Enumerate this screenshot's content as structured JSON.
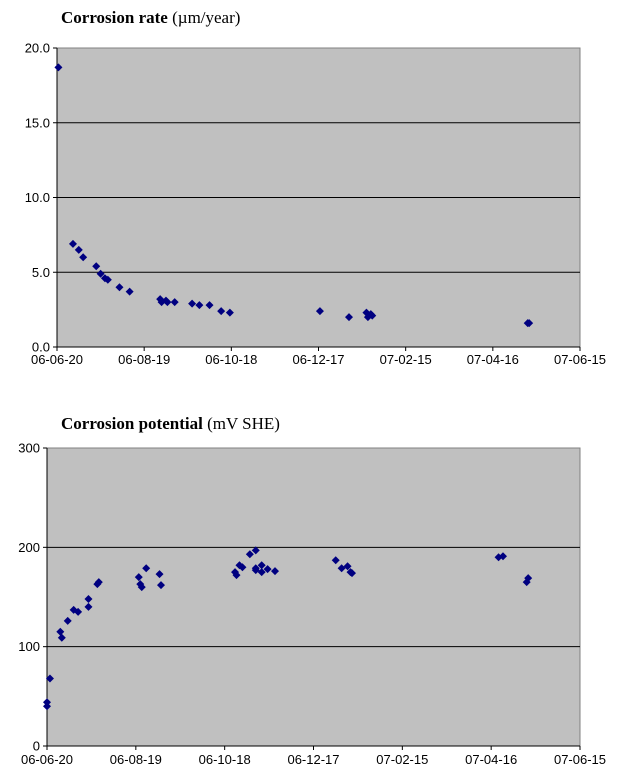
{
  "chart_data": [
    {
      "type": "scatter",
      "title": "Corrosion rate",
      "title_unit": "(µm/year)",
      "ylim": [
        0,
        20
      ],
      "yticks": [
        0,
        5,
        10,
        15,
        20
      ],
      "ytick_labels": [
        "0.0",
        "5.0",
        "10.0",
        "15.0",
        "20.0"
      ],
      "xlim": [
        "2006-06-20",
        "2007-06-15"
      ],
      "xtick_labels": [
        "06-06-20",
        "06-08-19",
        "06-10-18",
        "06-12-17",
        "07-02-15",
        "07-04-16",
        "07-06-15"
      ],
      "grid": true,
      "background_color": "#c0c0c0",
      "marker_color": "#000080",
      "points": [
        {
          "x": "2006-06-21",
          "y": 18.7
        },
        {
          "x": "2006-07-01",
          "y": 6.9
        },
        {
          "x": "2006-07-05",
          "y": 6.5
        },
        {
          "x": "2006-07-08",
          "y": 6.0
        },
        {
          "x": "2006-07-17",
          "y": 5.4
        },
        {
          "x": "2006-07-20",
          "y": 4.9
        },
        {
          "x": "2006-07-23",
          "y": 4.6
        },
        {
          "x": "2006-07-25",
          "y": 4.5
        },
        {
          "x": "2006-08-02",
          "y": 4.0
        },
        {
          "x": "2006-08-09",
          "y": 3.7
        },
        {
          "x": "2006-08-30",
          "y": 3.2
        },
        {
          "x": "2006-08-31",
          "y": 3.0
        },
        {
          "x": "2006-09-03",
          "y": 3.1
        },
        {
          "x": "2006-09-04",
          "y": 3.0
        },
        {
          "x": "2006-09-09",
          "y": 3.0
        },
        {
          "x": "2006-09-21",
          "y": 2.9
        },
        {
          "x": "2006-09-26",
          "y": 2.8
        },
        {
          "x": "2006-10-03",
          "y": 2.8
        },
        {
          "x": "2006-10-11",
          "y": 2.4
        },
        {
          "x": "2006-10-17",
          "y": 2.3
        },
        {
          "x": "2006-12-18",
          "y": 2.4
        },
        {
          "x": "2007-01-07",
          "y": 2.0
        },
        {
          "x": "2007-01-19",
          "y": 2.3
        },
        {
          "x": "2007-01-20",
          "y": 2.0
        },
        {
          "x": "2007-01-22",
          "y": 2.2
        },
        {
          "x": "2007-01-23",
          "y": 2.1
        },
        {
          "x": "2007-05-10",
          "y": 1.6
        },
        {
          "x": "2007-05-11",
          "y": 1.6
        }
      ]
    },
    {
      "type": "scatter",
      "title": "Corrosion potential",
      "title_unit": "(mV SHE)",
      "ylim": [
        0,
        300
      ],
      "yticks": [
        0,
        100,
        200,
        300
      ],
      "ytick_labels": [
        "0",
        "100",
        "200",
        "300"
      ],
      "xlim": [
        "2006-06-20",
        "2007-06-15"
      ],
      "xtick_labels": [
        "06-06-20",
        "06-08-19",
        "06-10-18",
        "06-12-17",
        "07-02-15",
        "07-04-16",
        "07-06-15"
      ],
      "grid": true,
      "background_color": "#c0c0c0",
      "marker_color": "#000080",
      "points": [
        {
          "x": "2006-06-20",
          "y": 40
        },
        {
          "x": "2006-06-20",
          "y": 44
        },
        {
          "x": "2006-06-22",
          "y": 68
        },
        {
          "x": "2006-06-29",
          "y": 115
        },
        {
          "x": "2006-06-30",
          "y": 109
        },
        {
          "x": "2006-07-04",
          "y": 126
        },
        {
          "x": "2006-07-08",
          "y": 137
        },
        {
          "x": "2006-07-11",
          "y": 135
        },
        {
          "x": "2006-07-18",
          "y": 148
        },
        {
          "x": "2006-07-18",
          "y": 140
        },
        {
          "x": "2006-07-24",
          "y": 163
        },
        {
          "x": "2006-07-25",
          "y": 165
        },
        {
          "x": "2006-08-21",
          "y": 170
        },
        {
          "x": "2006-08-22",
          "y": 163
        },
        {
          "x": "2006-08-23",
          "y": 160
        },
        {
          "x": "2006-08-26",
          "y": 179
        },
        {
          "x": "2006-09-04",
          "y": 173
        },
        {
          "x": "2006-09-05",
          "y": 162
        },
        {
          "x": "2006-10-25",
          "y": 175
        },
        {
          "x": "2006-10-26",
          "y": 172
        },
        {
          "x": "2006-10-28",
          "y": 182
        },
        {
          "x": "2006-10-30",
          "y": 180
        },
        {
          "x": "2006-11-04",
          "y": 193
        },
        {
          "x": "2006-11-08",
          "y": 197
        },
        {
          "x": "2006-11-08",
          "y": 177
        },
        {
          "x": "2006-11-08",
          "y": 179
        },
        {
          "x": "2006-11-12",
          "y": 182
        },
        {
          "x": "2006-11-12",
          "y": 175
        },
        {
          "x": "2006-11-16",
          "y": 178
        },
        {
          "x": "2006-11-21",
          "y": 176
        },
        {
          "x": "2007-01-01",
          "y": 187
        },
        {
          "x": "2007-01-05",
          "y": 179
        },
        {
          "x": "2007-01-09",
          "y": 181
        },
        {
          "x": "2007-01-11",
          "y": 175
        },
        {
          "x": "2007-01-12",
          "y": 174
        },
        {
          "x": "2007-04-21",
          "y": 190
        },
        {
          "x": "2007-04-24",
          "y": 191
        },
        {
          "x": "2007-05-10",
          "y": 165
        },
        {
          "x": "2007-05-11",
          "y": 169
        }
      ]
    }
  ]
}
